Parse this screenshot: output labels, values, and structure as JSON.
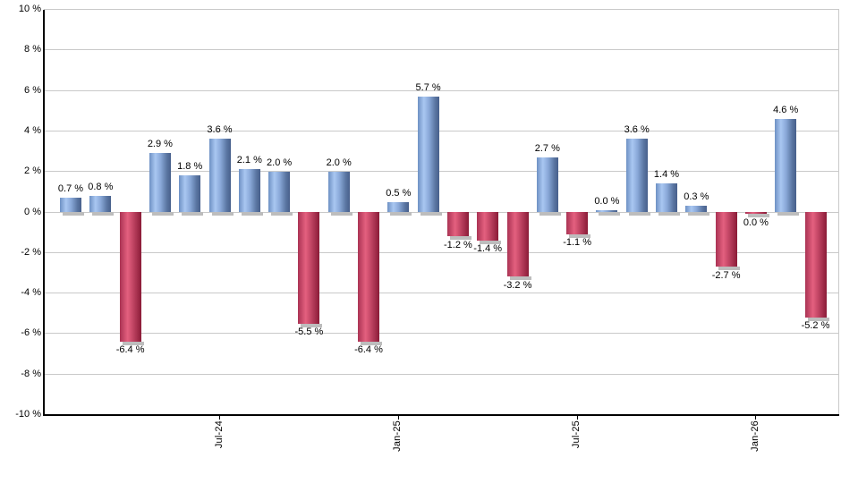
{
  "chart_data": {
    "type": "bar",
    "title": "",
    "ylabel": "",
    "xlabel": "",
    "unit": "%",
    "ylim": [
      -10,
      10
    ],
    "ytick_step": 2,
    "grid": true,
    "legend": false,
    "ytick_labels": [
      "10 %",
      "8 %",
      "6 %",
      "4 %",
      "2 %",
      "0 %",
      "-2 %",
      "-4 %",
      "-6 %",
      "-8 %",
      "-10 %"
    ],
    "xticks": [
      {
        "index": 5,
        "label": "Jul-24"
      },
      {
        "index": 11,
        "label": "Jan-25"
      },
      {
        "index": 17,
        "label": "Jul-25"
      },
      {
        "index": 23,
        "label": "Jan-26"
      }
    ],
    "points": [
      {
        "value": 0.7,
        "label": "0.7 %",
        "color": "blue"
      },
      {
        "value": 0.8,
        "label": "0.8 %",
        "color": "blue"
      },
      {
        "value": -6.4,
        "label": "-6.4 %",
        "color": "red"
      },
      {
        "value": 2.9,
        "label": "2.9 %",
        "color": "blue"
      },
      {
        "value": 1.8,
        "label": "1.8 %",
        "color": "blue"
      },
      {
        "value": 3.6,
        "label": "3.6 %",
        "color": "blue"
      },
      {
        "value": 2.1,
        "label": "2.1 %",
        "color": "blue"
      },
      {
        "value": 2.0,
        "label": "2.0 %",
        "color": "blue"
      },
      {
        "value": -5.5,
        "label": "-5.5 %",
        "color": "red"
      },
      {
        "value": 2.0,
        "label": "2.0 %",
        "color": "blue"
      },
      {
        "value": -6.4,
        "label": "-6.4 %",
        "color": "red"
      },
      {
        "value": 0.5,
        "label": "0.5 %",
        "color": "blue"
      },
      {
        "value": 5.7,
        "label": "5.7 %",
        "color": "blue"
      },
      {
        "value": -1.2,
        "label": "-1.2 %",
        "color": "red"
      },
      {
        "value": -1.4,
        "label": "-1.4 %",
        "color": "red"
      },
      {
        "value": -3.2,
        "label": "-3.2 %",
        "color": "red"
      },
      {
        "value": 2.7,
        "label": "2.7 %",
        "color": "blue"
      },
      {
        "value": -1.1,
        "label": "-1.1 %",
        "color": "red"
      },
      {
        "value": 0.0,
        "label": "0.0 %",
        "color": "blue"
      },
      {
        "value": 3.6,
        "label": "3.6 %",
        "color": "blue"
      },
      {
        "value": 1.4,
        "label": "1.4 %",
        "color": "blue"
      },
      {
        "value": 0.3,
        "label": "0.3 %",
        "color": "blue"
      },
      {
        "value": -2.7,
        "label": "-2.7 %",
        "color": "red"
      },
      {
        "value": 0.0,
        "label": "0.0 %",
        "color": "red"
      },
      {
        "value": 4.6,
        "label": "4.6 %",
        "color": "blue"
      },
      {
        "value": -5.2,
        "label": "-5.2 %",
        "color": "red"
      }
    ],
    "colors": {
      "positive_bar": "#a9c7f1",
      "negative_bar": "#e4607f",
      "gridline": "#c9c9c9",
      "axis": "#000000",
      "text": "#000000",
      "shadow": "#bdbdbd"
    }
  }
}
